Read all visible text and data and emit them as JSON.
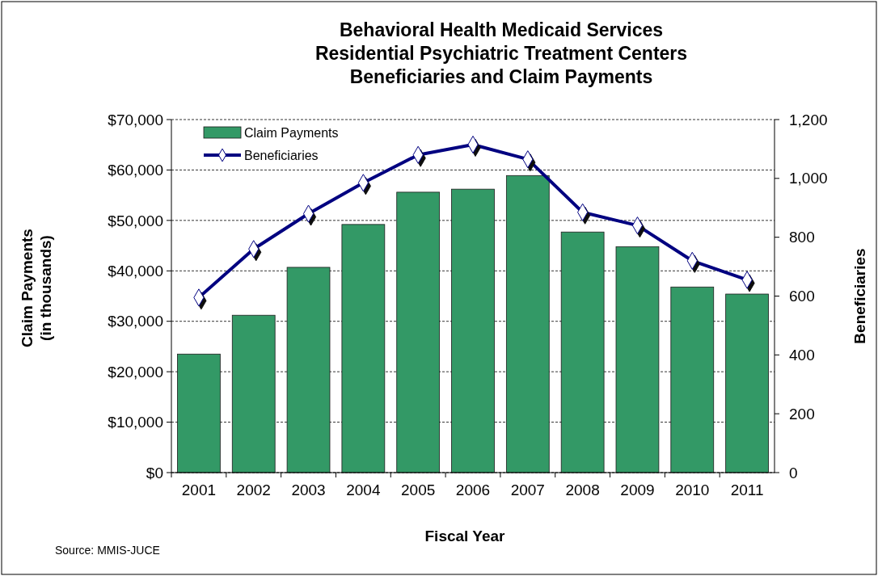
{
  "chart_data": {
    "type": "bar",
    "title": "Behavioral Health Medicaid Services\nResidential Psychiatric Treatment Centers\nBeneficiaries and Claim Payments",
    "xlabel": "Fiscal Year",
    "ylabel": "Claim Payments\n(in thousands)",
    "y2label": "Beneficiaries",
    "categories": [
      "2001",
      "2002",
      "2003",
      "2004",
      "2005",
      "2006",
      "2007",
      "2008",
      "2009",
      "2010",
      "2011"
    ],
    "series": [
      {
        "name": "Claim Payments",
        "color": "#339966",
        "values": [
          23500,
          31200,
          40700,
          49200,
          55600,
          56200,
          58900,
          47700,
          44800,
          36800,
          35400
        ]
      },
      {
        "name": "Beneficiaries",
        "type": "line",
        "axis": "y2",
        "color": "#000080",
        "marker": "diamond",
        "values": [
          595,
          760,
          880,
          985,
          1080,
          1115,
          1065,
          885,
          840,
          720,
          655
        ]
      }
    ],
    "ylim": [
      0,
      70000
    ],
    "yticks": [
      {
        "value": 0,
        "label": "$0"
      },
      {
        "value": 10000,
        "label": "$10,000"
      },
      {
        "value": 20000,
        "label": "$20,000"
      },
      {
        "value": 30000,
        "label": "$30,000"
      },
      {
        "value": 40000,
        "label": "$40,000"
      },
      {
        "value": 50000,
        "label": "$50,000"
      },
      {
        "value": 60000,
        "label": "$60,000"
      },
      {
        "value": 70000,
        "label": "$70,000"
      }
    ],
    "y2lim": [
      0,
      1200
    ],
    "y2ticks": [
      0,
      200,
      400,
      600,
      800,
      {
        "value": 1000,
        "label": "1,000"
      },
      {
        "value": 1200,
        "label": "1,200"
      }
    ],
    "grid": "y",
    "legend": "top left",
    "annotations": [
      "Source: MMIS-JUCE"
    ]
  }
}
